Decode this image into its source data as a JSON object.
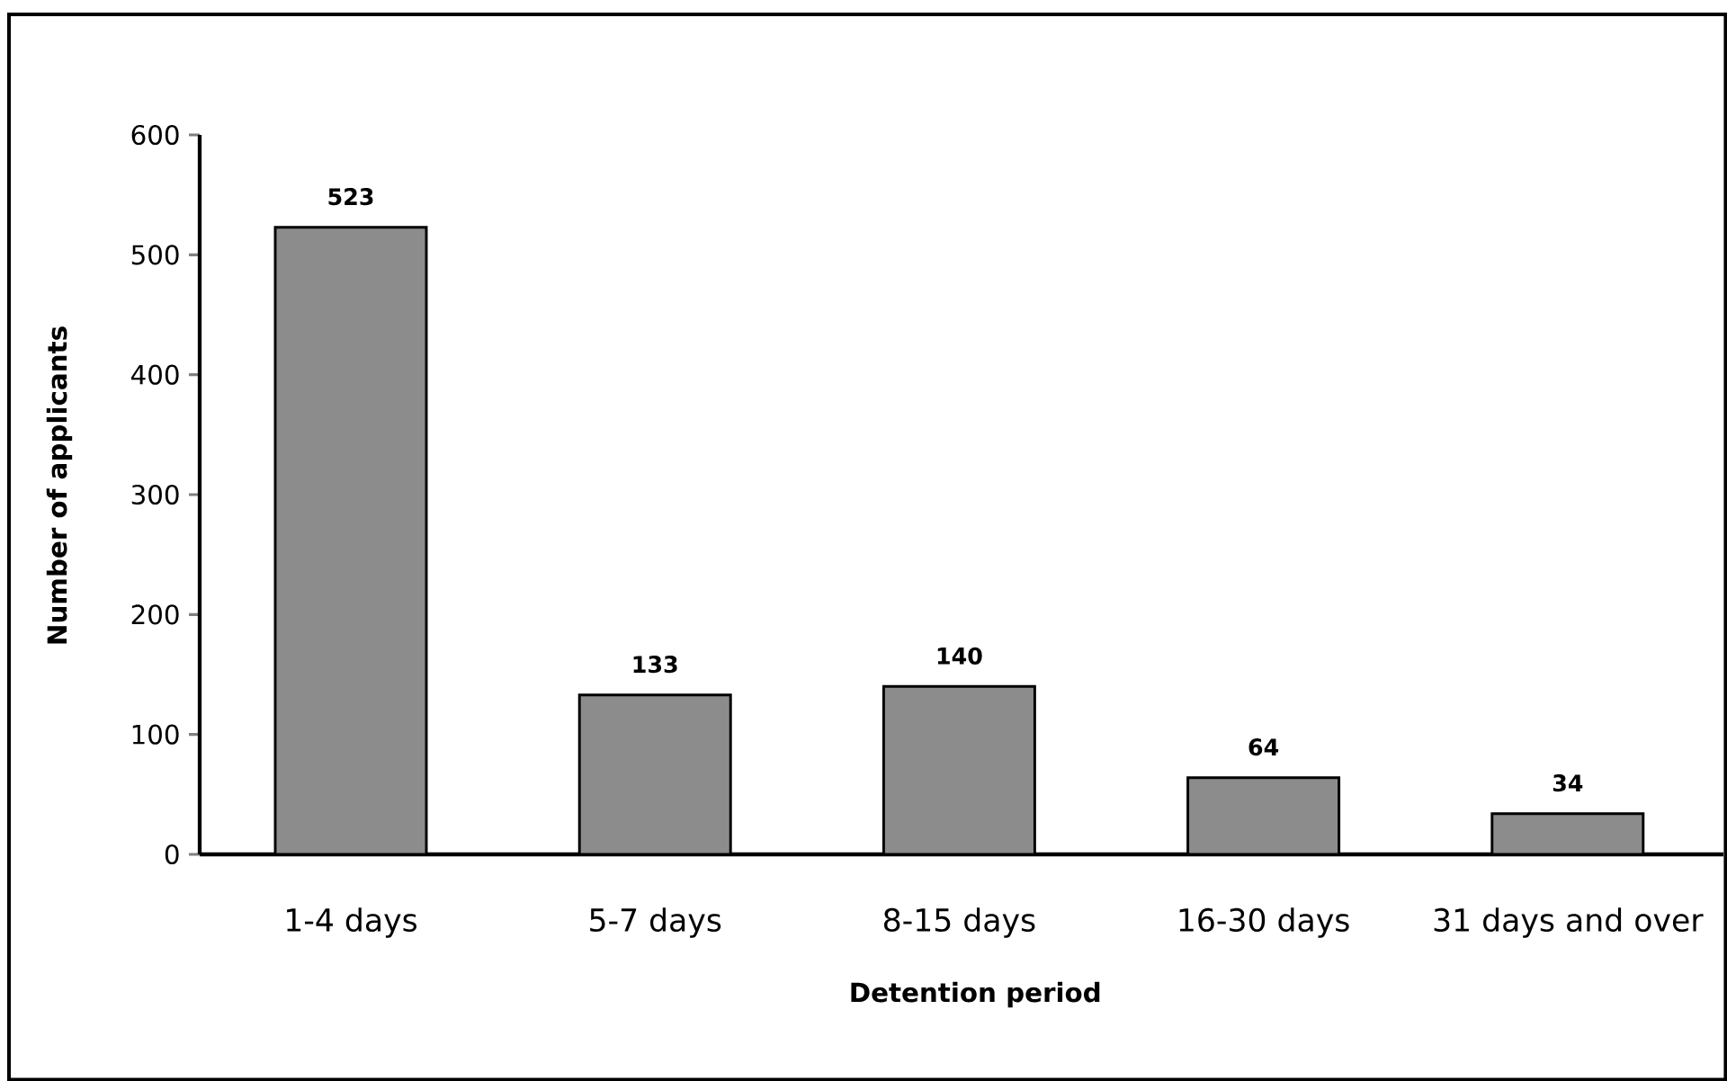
{
  "chart_data": {
    "type": "bar",
    "xlabel": "Detention period",
    "ylabel": "Number of applicants",
    "categories": [
      "1-4 days",
      "5-7 days",
      "8-15 days",
      "16-30 days",
      "31 days and over"
    ],
    "values": [
      523,
      133,
      140,
      64,
      34
    ],
    "color": "#8c8c8c",
    "ylim": [
      0,
      600
    ],
    "yticks": [
      0,
      100,
      200,
      300,
      400,
      500,
      600
    ],
    "data_labels": true
  }
}
